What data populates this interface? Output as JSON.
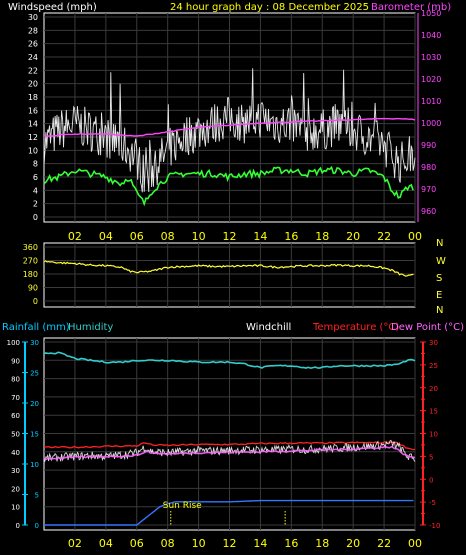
{
  "header": {
    "left_title": "Windspeed (mph)",
    "center_title": "24 hour graph day : 08 December 2025",
    "right_title": "Barometer (mb)"
  },
  "colors": {
    "background": "#000000",
    "frame": "#ffffff",
    "grid": "#3a3a3a",
    "windspeed": "#ffffff",
    "wind_avg": "#33ff33",
    "barometer": "#ff44ff",
    "wind_dir": "#ffff33",
    "rain_axis": "#00ccff",
    "humidity": "#33cccc",
    "temperature": "#ff2222",
    "windchill": "#ffffff",
    "dew_point": "#ff66ff",
    "rainfall": "#3377ff",
    "x_labels": "#ffff00",
    "sun_rise": "#ffff00"
  },
  "x_axis": {
    "hour_labels": [
      "02",
      "04",
      "06",
      "08",
      "10",
      "12",
      "14",
      "16",
      "18",
      "20",
      "22",
      "00"
    ]
  },
  "chart_data": [
    {
      "type": "line",
      "name": "wind_barometer",
      "left_axis": {
        "title": "Windspeed (mph)",
        "ticks": [
          0,
          2,
          4,
          6,
          8,
          10,
          12,
          14,
          16,
          18,
          20,
          22,
          24,
          26,
          28,
          30
        ],
        "ylim": [
          0,
          30
        ]
      },
      "right_axis": {
        "title": "Barometer (mb)",
        "ticks": [
          960,
          970,
          980,
          990,
          1000,
          1010,
          1020,
          1030,
          1040,
          1050
        ],
        "ylim": [
          955,
          1050
        ]
      },
      "series": [
        {
          "name": "Windspeed",
          "axis": "left",
          "style": "gust",
          "hours": [
            0,
            1,
            2,
            3,
            4,
            5,
            6,
            6.5,
            7,
            8,
            9,
            10,
            11,
            12,
            13,
            14,
            15,
            16,
            17,
            18,
            19,
            20,
            21,
            22,
            23,
            24
          ],
          "values": [
            11,
            13,
            14,
            13,
            12,
            11,
            9,
            6,
            7,
            10,
            12,
            13,
            14,
            15,
            14,
            15,
            14,
            14,
            13,
            13,
            14,
            13,
            12,
            11,
            8,
            10
          ]
        },
        {
          "name": "Wind average",
          "axis": "left",
          "hours": [
            0,
            1,
            2,
            3,
            4,
            5,
            5.5,
            6,
            6.5,
            7,
            8,
            9,
            10,
            11,
            12,
            13,
            14,
            15,
            16,
            17,
            18,
            19,
            20,
            21,
            22,
            22.5,
            23,
            23.5,
            24
          ],
          "values": [
            5.5,
            6,
            7,
            6.5,
            6,
            5,
            6,
            3.5,
            2,
            4,
            6,
            6.5,
            6.5,
            6.5,
            6,
            6.5,
            6.5,
            7,
            7,
            6.5,
            7,
            7,
            6.5,
            7,
            6,
            4,
            3,
            4.5,
            4.5
          ]
        },
        {
          "name": "Barometer",
          "axis": "right",
          "hours": [
            0,
            2,
            4,
            6,
            8,
            10,
            12,
            14,
            16,
            18,
            20,
            22,
            23,
            24
          ],
          "values": [
            994,
            995,
            995,
            994,
            996,
            998,
            999,
            1000,
            1000.5,
            1001,
            1001.5,
            1002,
            1002,
            1001.5
          ]
        }
      ]
    },
    {
      "type": "line",
      "name": "wind_direction",
      "left_axis": {
        "ticks": [
          360,
          270,
          180,
          90,
          0
        ],
        "ylim": [
          0,
          360
        ]
      },
      "right_axis": {
        "labels": [
          "N",
          "W",
          "S",
          "E",
          "N"
        ]
      },
      "series": [
        {
          "name": "Wind direction",
          "hours": [
            0,
            1,
            2,
            3,
            4,
            5,
            5.5,
            6,
            6.5,
            7,
            8,
            9,
            10,
            11,
            12,
            13,
            14,
            15,
            16,
            17,
            18,
            19,
            20,
            21,
            22,
            22.5,
            23,
            23.5,
            24
          ],
          "values": [
            265,
            255,
            250,
            240,
            235,
            225,
            200,
            190,
            195,
            200,
            225,
            230,
            235,
            230,
            230,
            235,
            235,
            225,
            230,
            235,
            235,
            240,
            235,
            235,
            220,
            205,
            180,
            165,
            175
          ]
        }
      ]
    },
    {
      "type": "line",
      "name": "temp_humidity_rain",
      "header": {
        "rainfall": "Rainfall (mm)",
        "humidity": "Humidity",
        "windchill": "Windchill",
        "temperature": "Temperature (°C)",
        "dew_point": "Dew Point (°C)"
      },
      "left_axis_humidity": {
        "ticks": [
          0,
          10,
          20,
          30,
          40,
          50,
          60,
          70,
          80,
          90,
          100
        ],
        "ylim": [
          0,
          100
        ]
      },
      "left_axis_rain": {
        "ticks": [
          0,
          5,
          10,
          15,
          20,
          25,
          30
        ],
        "ylim": [
          0,
          30
        ]
      },
      "right_axis_temp": {
        "ticks": [
          -10,
          -5,
          0,
          5,
          10,
          15,
          20,
          25,
          30
        ],
        "ylim": [
          -10,
          30
        ]
      },
      "series": [
        {
          "name": "Humidity",
          "hours": [
            0,
            1,
            2,
            3,
            4,
            5,
            6,
            8,
            10,
            12,
            13,
            14,
            15,
            16,
            17,
            18,
            19,
            20,
            21,
            22,
            23,
            23.5,
            24
          ],
          "values": [
            94,
            94,
            91,
            90,
            89,
            89,
            90,
            90,
            89,
            89,
            88,
            86,
            87,
            87,
            86,
            86,
            87,
            87,
            87,
            87,
            88,
            90,
            90
          ]
        },
        {
          "name": "Temperature",
          "hours": [
            0,
            2,
            4,
            6,
            6.5,
            7,
            8,
            10,
            12,
            14,
            16,
            18,
            20,
            22,
            22.5,
            23,
            23.5,
            24
          ],
          "values": [
            7,
            7,
            7.2,
            7.3,
            8,
            7.5,
            7.4,
            7.6,
            7.6,
            7.8,
            7.9,
            7.9,
            8,
            8,
            8.2,
            7.8,
            6.8,
            6.5
          ]
        },
        {
          "name": "Windchill",
          "hours": [
            0,
            1,
            2,
            3,
            4,
            5,
            6,
            6.5,
            7,
            8,
            9,
            10,
            11,
            12,
            13,
            14,
            15,
            16,
            17,
            18,
            19,
            20,
            21,
            22,
            22.5,
            23,
            23.5,
            24
          ],
          "values": [
            4.5,
            4.8,
            5,
            5.2,
            5,
            5.3,
            5.8,
            7,
            6,
            5.8,
            6,
            6.3,
            6.2,
            6.3,
            6.4,
            6.5,
            6.4,
            6.6,
            6.5,
            6.7,
            6.8,
            7,
            7.2,
            7.5,
            7.8,
            7,
            5,
            4.5
          ]
        },
        {
          "name": "Dew Point",
          "hours": [
            0,
            2,
            4,
            6,
            6.5,
            7,
            8,
            10,
            12,
            14,
            16,
            18,
            20,
            22,
            22.5,
            23,
            23.5,
            24
          ],
          "values": [
            4.5,
            4.8,
            5,
            5.2,
            6,
            5.8,
            5.5,
            5.8,
            5.9,
            6,
            6.2,
            6.4,
            6.6,
            7,
            7.1,
            6.2,
            5,
            4.8
          ]
        },
        {
          "name": "Rainfall",
          "axis": "rain",
          "cumulative": true,
          "hours": [
            0,
            5,
            6,
            6.5,
            7,
            7.5,
            8,
            8.5,
            10,
            12,
            13,
            14,
            16,
            18,
            20,
            22,
            24
          ],
          "values": [
            0,
            0,
            0,
            1,
            2,
            3,
            3.5,
            3.8,
            3.8,
            3.8,
            3.9,
            4,
            4,
            4,
            4,
            4,
            4
          ]
        }
      ],
      "annotations": [
        {
          "text": "Sun Rise",
          "hour": 8.2
        }
      ]
    }
  ]
}
